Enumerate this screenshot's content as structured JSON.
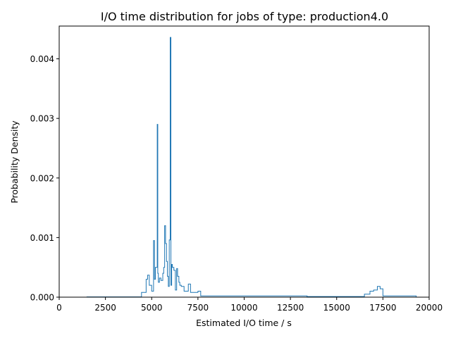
{
  "chart_data": {
    "type": "histogram",
    "title": "I/O time distribution for jobs of type: production4.0",
    "xlabel": "Estimated I/O time / s",
    "ylabel": "Probability Density",
    "xlim": [
      0,
      20000
    ],
    "ylim": [
      0,
      0.00455
    ],
    "xticks": [
      0,
      2500,
      5000,
      7500,
      10000,
      12500,
      15000,
      17500,
      20000
    ],
    "xtick_labels": [
      "0",
      "2500",
      "5000",
      "7500",
      "10000",
      "12500",
      "15000",
      "17500",
      "20000"
    ],
    "yticks": [
      0,
      0.001,
      0.002,
      0.003,
      0.004
    ],
    "ytick_labels": [
      "0.000",
      "0.001",
      "0.002",
      "0.003",
      "0.004"
    ],
    "grid": false,
    "series_color": "#1f77b4",
    "series": [
      {
        "histtype": "step",
        "segments": [
          {
            "x_edges": [
              1500,
              4450,
              4700,
              4780,
              4870,
              5000,
              5100,
              5150,
              5200,
              5300,
              5330,
              5360,
              5420,
              5500,
              5600,
              5650,
              5700,
              5750,
              5800,
              5850,
              5900,
              5950,
              6000,
              6040,
              6080,
              6120,
              6200,
              6280,
              6350,
              6400,
              6470,
              6520,
              6600,
              6750,
              6980,
              7100,
              7500,
              7650,
              13400
            ],
            "densities": [
              5e-06,
              8e-05,
              0.0003,
              0.00037,
              0.0002,
              0.0001,
              0.00095,
              0.0003,
              0.0005,
              0.0029,
              0.0004,
              0.00025,
              0.00032,
              0.00028,
              0.0004,
              0.0005,
              0.0012,
              0.0009,
              0.0006,
              0.00035,
              0.00018,
              0.00096,
              0.00436,
              0.0002,
              0.00055,
              0.0005,
              0.00045,
              0.00012,
              0.00048,
              0.00035,
              0.00025,
              0.0002,
              0.00018,
              0.0001,
              0.00022,
              8e-05,
              0.0001,
              2e-05
            ]
          },
          {
            "x_edges": [
              13400,
              16500,
              16800,
              17000,
              17200,
              17350,
              17500,
              19300
            ],
            "densities": [
              1e-05,
              5e-05,
              0.0001,
              0.00012,
              0.00018,
              0.00014,
              2e-05
            ]
          }
        ]
      }
    ]
  }
}
